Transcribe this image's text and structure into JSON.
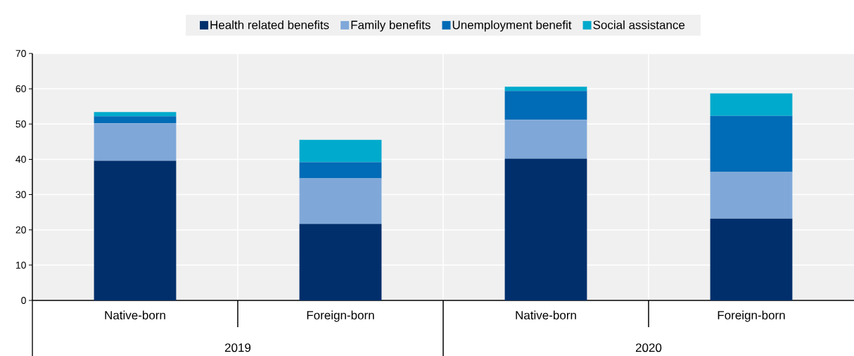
{
  "chart_data": {
    "type": "bar",
    "stacked": true,
    "categories": [
      "Native-born",
      "Foreign-born",
      "Native-born",
      "Foreign-born"
    ],
    "series": [
      {
        "name": "Health related benefits",
        "color": "#002f6c",
        "values": [
          39.6,
          21.7,
          40.2,
          23.2
        ]
      },
      {
        "name": "Family benefits",
        "color": "#7fa8d9",
        "values": [
          10.6,
          12.9,
          11.0,
          13.2
        ]
      },
      {
        "name": "Unemployment benefit",
        "color": "#006bb6",
        "values": [
          2.0,
          4.6,
          8.2,
          15.9
        ]
      },
      {
        "name": "Social assistance",
        "color": "#00aacc",
        "values": [
          1.2,
          6.3,
          1.2,
          6.4
        ]
      }
    ],
    "ylim": [
      0,
      70
    ],
    "yticks": [
      0,
      10,
      20,
      30,
      40,
      50,
      60,
      70
    ],
    "grid": true,
    "legend": "top",
    "annotations": [
      "2019",
      "2020"
    ]
  }
}
